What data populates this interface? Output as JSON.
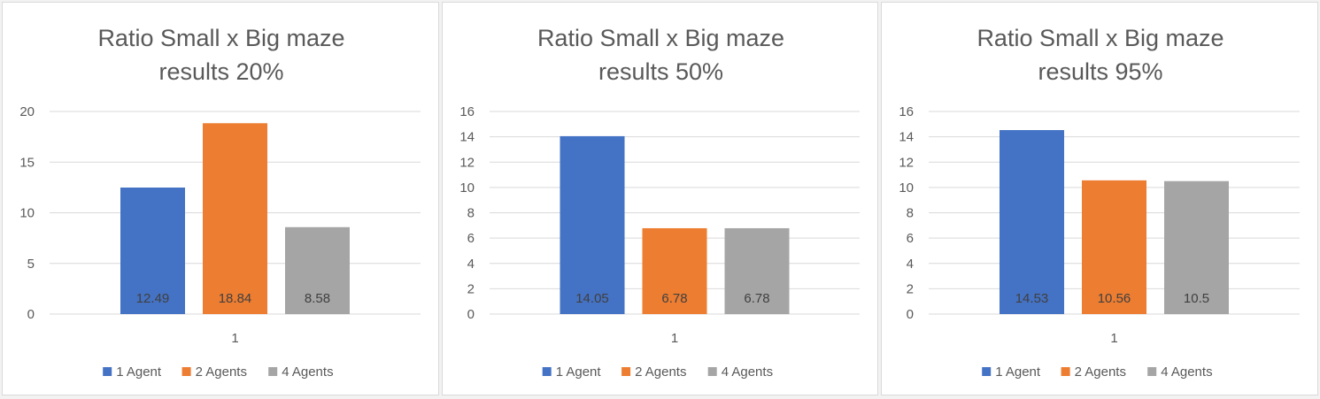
{
  "chart_data": [
    {
      "type": "bar",
      "title_lines": [
        "Ratio Small x Big maze",
        "results 20%"
      ],
      "categories": [
        "1"
      ],
      "yticks": [
        "0",
        "5",
        "10",
        "15",
        "20"
      ],
      "ylim": [
        0,
        20
      ],
      "grid": true,
      "legend_position": "bottom",
      "series": [
        {
          "name": "1 Agent",
          "values": [
            12.49
          ],
          "label": "12.49",
          "color": "#4472c4"
        },
        {
          "name": "2 Agents",
          "values": [
            18.84
          ],
          "label": "18.84",
          "color": "#ed7d31"
        },
        {
          "name": "4 Agents",
          "values": [
            8.58
          ],
          "label": "8.58",
          "color": "#a5a5a5"
        }
      ]
    },
    {
      "type": "bar",
      "title_lines": [
        "Ratio Small x Big maze",
        "results 50%"
      ],
      "categories": [
        "1"
      ],
      "yticks": [
        "0",
        "2",
        "4",
        "6",
        "8",
        "10",
        "12",
        "14",
        "16"
      ],
      "ylim": [
        0,
        16
      ],
      "grid": true,
      "legend_position": "bottom",
      "series": [
        {
          "name": "1 Agent",
          "values": [
            14.05
          ],
          "label": "14.05",
          "color": "#4472c4"
        },
        {
          "name": "2 Agents",
          "values": [
            6.78
          ],
          "label": "6.78",
          "color": "#ed7d31"
        },
        {
          "name": "4 Agents",
          "values": [
            6.78
          ],
          "label": "6.78",
          "color": "#a5a5a5"
        }
      ]
    },
    {
      "type": "bar",
      "title_lines": [
        "Ratio Small x Big maze",
        "results 95%"
      ],
      "categories": [
        "1"
      ],
      "yticks": [
        "0",
        "2",
        "4",
        "6",
        "8",
        "10",
        "12",
        "14",
        "16"
      ],
      "ylim": [
        0,
        16
      ],
      "grid": true,
      "legend_position": "bottom",
      "series": [
        {
          "name": "1 Agent",
          "values": [
            14.53
          ],
          "label": "14.53",
          "color": "#4472c4"
        },
        {
          "name": "2 Agents",
          "values": [
            10.56
          ],
          "label": "10.56",
          "color": "#ed7d31"
        },
        {
          "name": "4 Agents",
          "values": [
            10.5
          ],
          "label": "10.5",
          "color": "#a5a5a5"
        }
      ]
    }
  ]
}
